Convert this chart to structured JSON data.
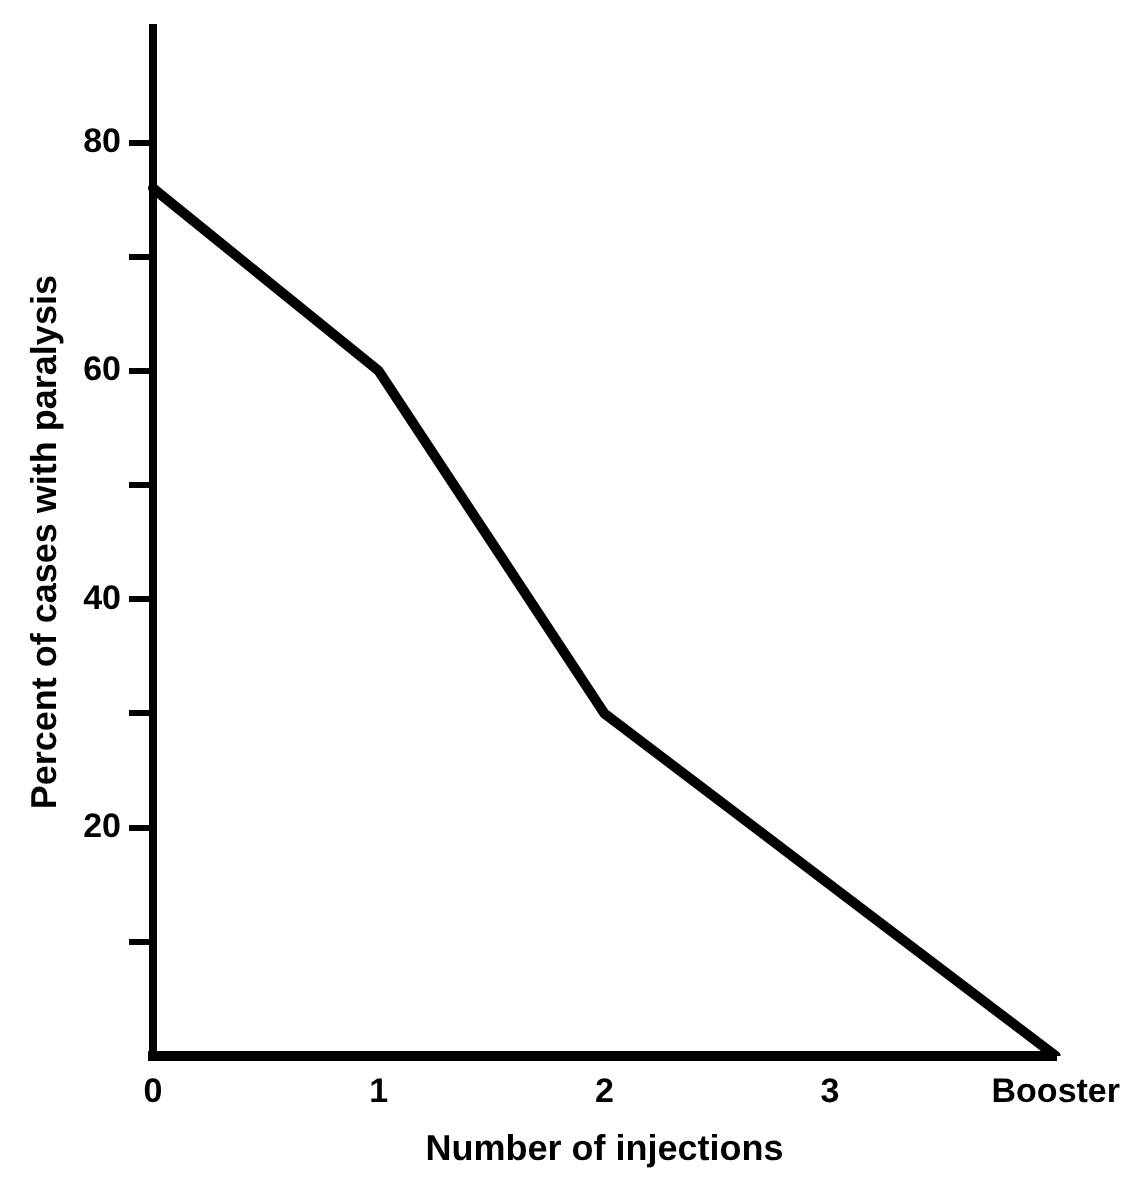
{
  "chart_data": {
    "type": "line",
    "xlabel": "Number of injections",
    "ylabel": "Percent of cases with paralysis",
    "categories": [
      "0",
      "1",
      "2",
      "3",
      "Booster"
    ],
    "series": [
      {
        "color": "#000000",
        "values": [
          76,
          60,
          30,
          15,
          0
        ]
      }
    ],
    "ylim": [
      0,
      90
    ],
    "yticks": [
      {
        "value": 10,
        "label": null
      },
      20,
      {
        "value": 30,
        "label": null
      },
      40,
      {
        "value": 50,
        "label": null
      },
      60,
      {
        "value": 70,
        "label": null
      },
      80
    ],
    "grid": false,
    "legend": false,
    "marker": "none",
    "line_style": "solid"
  }
}
